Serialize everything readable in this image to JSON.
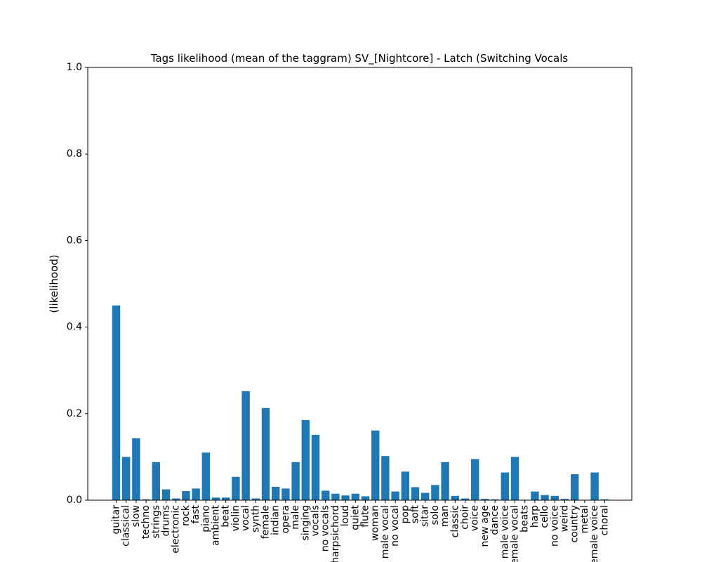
{
  "chart_data": {
    "type": "bar",
    "title": "Tags likelihood (mean of the taggram) SV_[Nightcore] - Latch (Switching Vocals",
    "xlabel": "",
    "ylabel": "(likelihood)",
    "ylim": [
      0,
      1
    ],
    "yticks": [
      0.0,
      0.2,
      0.4,
      0.6,
      0.8,
      1.0
    ],
    "ytick_labels": [
      "0.0",
      "0.2",
      "0.4",
      "0.6",
      "0.8",
      "1.0"
    ],
    "grid": false,
    "bar_color": "#1f77b4",
    "categories": [
      "guitar",
      "classical",
      "slow",
      "techno",
      "strings",
      "drums",
      "electronic",
      "rock",
      "fast",
      "piano",
      "ambient",
      "beat",
      "violin",
      "vocal",
      "synth",
      "female",
      "indian",
      "opera",
      "male",
      "singing",
      "vocals",
      "no vocals",
      "harpsichord",
      "loud",
      "quiet",
      "flute",
      "woman",
      "male vocal",
      "no vocal",
      "pop",
      "soft",
      "sitar",
      "solo",
      "man",
      "classic",
      "choir",
      "voice",
      "new age",
      "dance",
      "male voice",
      "female vocal",
      "beats",
      "harp",
      "cello",
      "no voice",
      "weird",
      "country",
      "metal",
      "female voice",
      "choral"
    ],
    "values": [
      0.45,
      0.1,
      0.143,
      0.002,
      0.088,
      0.025,
      0.004,
      0.021,
      0.027,
      0.11,
      0.006,
      0.006,
      0.054,
      0.252,
      0.004,
      0.213,
      0.031,
      0.027,
      0.088,
      0.185,
      0.151,
      0.022,
      0.015,
      0.011,
      0.015,
      0.009,
      0.161,
      0.102,
      0.02,
      0.066,
      0.03,
      0.017,
      0.035,
      0.088,
      0.01,
      0.004,
      0.095,
      0.003,
      0.002,
      0.064,
      0.1,
      0.001,
      0.02,
      0.012,
      0.01,
      0.003,
      0.06,
      0.001,
      0.064,
      0.002
    ]
  }
}
